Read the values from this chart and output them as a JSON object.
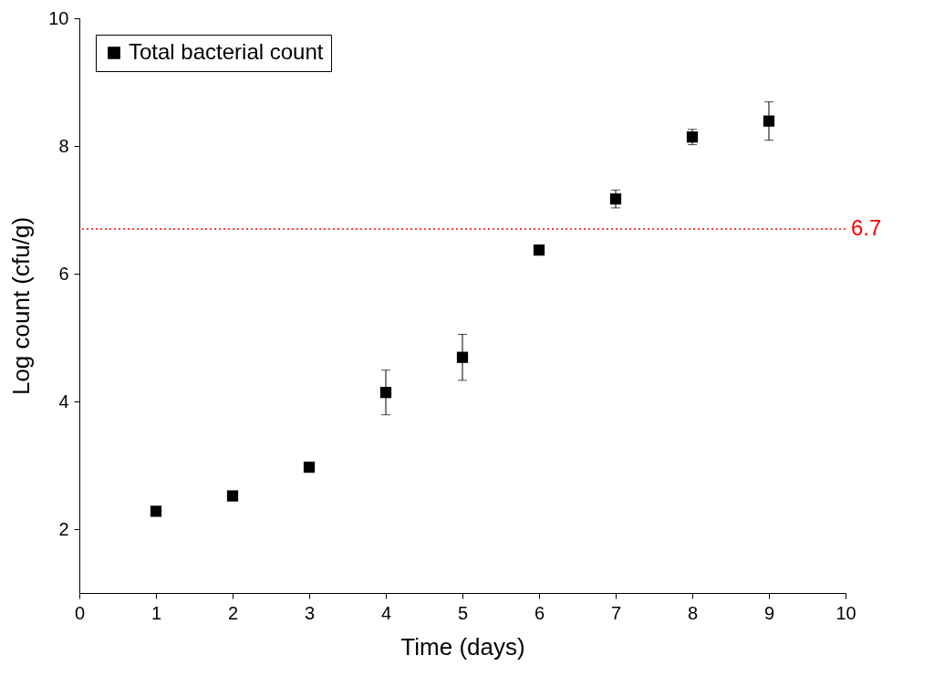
{
  "chart_data": {
    "type": "scatter",
    "xlabel": "Time (days)",
    "ylabel": "Log count (cfu/g)",
    "x": [
      1,
      2,
      3,
      4,
      5,
      6,
      7,
      8,
      9
    ],
    "series": [
      {
        "name": "Total bacterial count",
        "color": "#000000",
        "values": [
          2.28,
          2.52,
          2.97,
          4.14,
          4.69,
          6.37,
          7.17,
          8.14,
          8.39
        ],
        "errors": [
          null,
          null,
          null,
          0.35,
          0.36,
          null,
          0.14,
          0.12,
          0.3
        ]
      }
    ],
    "xlim": [
      0,
      10
    ],
    "xticks": [
      0,
      1,
      2,
      3,
      4,
      5,
      6,
      7,
      8,
      9,
      10
    ],
    "ylim": [
      1,
      10
    ],
    "yticks": [
      2,
      4,
      6,
      8,
      10
    ],
    "ref_lines": [
      {
        "axis": "y",
        "value": 6.7,
        "label": "6.7",
        "color": "#ff0000",
        "line_style": "dotted"
      }
    ],
    "marker": "square",
    "legend": "top left",
    "grid": false
  }
}
